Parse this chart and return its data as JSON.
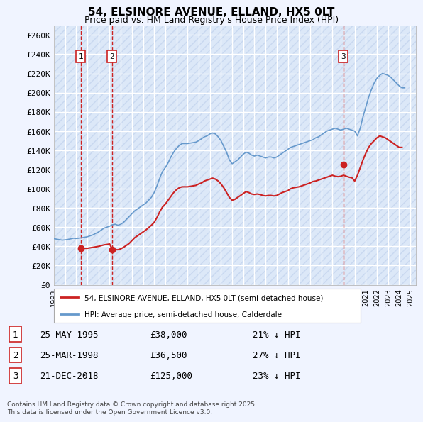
{
  "title": "54, ELSINORE AVENUE, ELLAND, HX5 0LT",
  "subtitle": "Price paid vs. HM Land Registry's House Price Index (HPI)",
  "ylabel": "",
  "ylim": [
    0,
    270000
  ],
  "yticks": [
    0,
    20000,
    40000,
    60000,
    80000,
    100000,
    120000,
    140000,
    160000,
    180000,
    200000,
    220000,
    240000,
    260000
  ],
  "ytick_labels": [
    "£0",
    "£20K",
    "£40K",
    "£60K",
    "£80K",
    "£100K",
    "£120K",
    "£140K",
    "£160K",
    "£180K",
    "£200K",
    "£220K",
    "£240K",
    "£260K"
  ],
  "background_color": "#f0f4ff",
  "plot_bg_color": "#dce8f8",
  "grid_color": "#ffffff",
  "hpi_color": "#6699cc",
  "price_color": "#cc2222",
  "transaction_color": "#cc2222",
  "vline_color": "#cc2222",
  "legend_label_price": "54, ELSINORE AVENUE, ELLAND, HX5 0LT (semi-detached house)",
  "legend_label_hpi": "HPI: Average price, semi-detached house, Calderdale",
  "transactions": [
    {
      "num": 1,
      "date": "25-MAY-1995",
      "price": 38000,
      "hpi_pct": "21% ↓ HPI",
      "year": 1995.4
    },
    {
      "num": 2,
      "date": "25-MAR-1998",
      "price": 36500,
      "hpi_pct": "27% ↓ HPI",
      "year": 1998.2
    },
    {
      "num": 3,
      "date": "21-DEC-2018",
      "price": 125000,
      "hpi_pct": "23% ↓ HPI",
      "year": 2018.97
    }
  ],
  "footer": "Contains HM Land Registry data © Crown copyright and database right 2025.\nThis data is licensed under the Open Government Licence v3.0.",
  "hpi_data": {
    "years": [
      1993.0,
      1993.25,
      1993.5,
      1993.75,
      1994.0,
      1994.25,
      1994.5,
      1994.75,
      1995.0,
      1995.25,
      1995.5,
      1995.75,
      1996.0,
      1996.25,
      1996.5,
      1996.75,
      1997.0,
      1997.25,
      1997.5,
      1997.75,
      1998.0,
      1998.25,
      1998.5,
      1998.75,
      1999.0,
      1999.25,
      1999.5,
      1999.75,
      2000.0,
      2000.25,
      2000.5,
      2000.75,
      2001.0,
      2001.25,
      2001.5,
      2001.75,
      2002.0,
      2002.25,
      2002.5,
      2002.75,
      2003.0,
      2003.25,
      2003.5,
      2003.75,
      2004.0,
      2004.25,
      2004.5,
      2004.75,
      2005.0,
      2005.25,
      2005.5,
      2005.75,
      2006.0,
      2006.25,
      2006.5,
      2006.75,
      2007.0,
      2007.25,
      2007.5,
      2007.75,
      2008.0,
      2008.25,
      2008.5,
      2008.75,
      2009.0,
      2009.25,
      2009.5,
      2009.75,
      2010.0,
      2010.25,
      2010.5,
      2010.75,
      2011.0,
      2011.25,
      2011.5,
      2011.75,
      2012.0,
      2012.25,
      2012.5,
      2012.75,
      2013.0,
      2013.25,
      2013.5,
      2013.75,
      2014.0,
      2014.25,
      2014.5,
      2014.75,
      2015.0,
      2015.25,
      2015.5,
      2015.75,
      2016.0,
      2016.25,
      2016.5,
      2016.75,
      2017.0,
      2017.25,
      2017.5,
      2017.75,
      2018.0,
      2018.25,
      2018.5,
      2018.75,
      2019.0,
      2019.25,
      2019.5,
      2019.75,
      2020.0,
      2020.25,
      2020.5,
      2020.75,
      2021.0,
      2021.25,
      2021.5,
      2021.75,
      2022.0,
      2022.25,
      2022.5,
      2022.75,
      2023.0,
      2023.25,
      2023.5,
      2023.75,
      2024.0,
      2024.25,
      2024.5
    ],
    "values": [
      48000,
      47500,
      47000,
      46500,
      46800,
      47200,
      47800,
      48500,
      48200,
      48500,
      49000,
      49500,
      50000,
      51000,
      52000,
      53500,
      55000,
      57000,
      59000,
      60000,
      61000,
      62500,
      63000,
      62000,
      63000,
      65000,
      68000,
      71000,
      74000,
      77000,
      79000,
      81000,
      83000,
      85000,
      88000,
      91000,
      96000,
      103000,
      111000,
      118000,
      122000,
      127000,
      133000,
      138000,
      142000,
      145000,
      147000,
      147000,
      147000,
      147500,
      148000,
      148500,
      150000,
      152000,
      154000,
      155000,
      157000,
      158000,
      157000,
      154000,
      150000,
      144000,
      138000,
      130000,
      126000,
      128000,
      130000,
      133000,
      136000,
      138000,
      137000,
      135000,
      134000,
      135000,
      134000,
      133000,
      132000,
      133000,
      133000,
      132000,
      133000,
      135000,
      137000,
      139000,
      141000,
      143000,
      144000,
      145000,
      146000,
      147000,
      148000,
      149000,
      150000,
      151000,
      153000,
      154000,
      156000,
      158000,
      160000,
      161000,
      162000,
      163000,
      162000,
      161000,
      162000,
      163000,
      162000,
      161000,
      160000,
      155000,
      163000,
      175000,
      185000,
      195000,
      203000,
      210000,
      215000,
      218000,
      220000,
      219000,
      218000,
      216000,
      213000,
      210000,
      207000,
      205000,
      205000
    ]
  },
  "price_data": {
    "years": [
      1993.0,
      1993.25,
      1993.5,
      1993.75,
      1994.0,
      1994.25,
      1994.5,
      1994.75,
      1995.0,
      1995.25,
      1995.5,
      1995.75,
      1996.0,
      1996.25,
      1996.5,
      1996.75,
      1997.0,
      1997.25,
      1997.5,
      1997.75,
      1998.0,
      1998.25,
      1998.5,
      1998.75,
      1999.0,
      1999.25,
      1999.5,
      1999.75,
      2000.0,
      2000.25,
      2000.5,
      2000.75,
      2001.0,
      2001.25,
      2001.5,
      2001.75,
      2002.0,
      2002.25,
      2002.5,
      2002.75,
      2003.0,
      2003.25,
      2003.5,
      2003.75,
      2004.0,
      2004.25,
      2004.5,
      2004.75,
      2005.0,
      2005.25,
      2005.5,
      2005.75,
      2006.0,
      2006.25,
      2006.5,
      2006.75,
      2007.0,
      2007.25,
      2007.5,
      2007.75,
      2008.0,
      2008.25,
      2008.5,
      2008.75,
      2009.0,
      2009.25,
      2009.5,
      2009.75,
      2010.0,
      2010.25,
      2010.5,
      2010.75,
      2011.0,
      2011.25,
      2011.5,
      2011.75,
      2012.0,
      2012.25,
      2012.5,
      2012.75,
      2013.0,
      2013.25,
      2013.5,
      2013.75,
      2014.0,
      2014.25,
      2014.5,
      2014.75,
      2015.0,
      2015.25,
      2015.5,
      2015.75,
      2016.0,
      2016.25,
      2016.5,
      2016.75,
      2017.0,
      2017.25,
      2017.5,
      2017.75,
      2018.0,
      2018.25,
      2018.5,
      2018.75,
      2019.0,
      2019.25,
      2019.5,
      2019.75,
      2020.0,
      2020.25,
      2020.5,
      2020.75,
      2021.0,
      2021.25,
      2021.5,
      2021.75,
      2022.0,
      2022.25,
      2022.5,
      2022.75,
      2023.0,
      2023.25,
      2023.5,
      2023.75,
      2024.0,
      2024.25,
      2024.5
    ],
    "values": [
      null,
      null,
      null,
      null,
      null,
      null,
      null,
      null,
      null,
      38000,
      38000,
      38000,
      38000,
      38500,
      39000,
      39500,
      40000,
      40800,
      41600,
      42000,
      42500,
      36500,
      36500,
      36500,
      37500,
      39000,
      41000,
      43000,
      46000,
      49000,
      51000,
      53000,
      55000,
      57000,
      59500,
      62000,
      65000,
      70000,
      76000,
      81000,
      84000,
      88000,
      92000,
      96000,
      99000,
      101000,
      102000,
      102000,
      102000,
      102500,
      103000,
      103500,
      105000,
      106000,
      108000,
      109000,
      110000,
      111000,
      110000,
      108000,
      105000,
      101000,
      96000,
      91000,
      88000,
      89000,
      91000,
      93000,
      95000,
      97000,
      96000,
      94500,
      94000,
      94500,
      94000,
      93000,
      92500,
      93000,
      93000,
      92500,
      93000,
      94500,
      96000,
      97000,
      98000,
      100000,
      101000,
      101500,
      102000,
      103000,
      104000,
      105000,
      106000,
      107500,
      108000,
      109000,
      110000,
      111000,
      112000,
      113000,
      114000,
      113000,
      112500,
      113000,
      114000,
      113000,
      112000,
      111500,
      108000,
      114000,
      122000,
      130000,
      137000,
      143000,
      147000,
      150000,
      153000,
      155000,
      154000,
      153000,
      151000,
      149000,
      147000,
      145000,
      143000,
      143000
    ]
  }
}
